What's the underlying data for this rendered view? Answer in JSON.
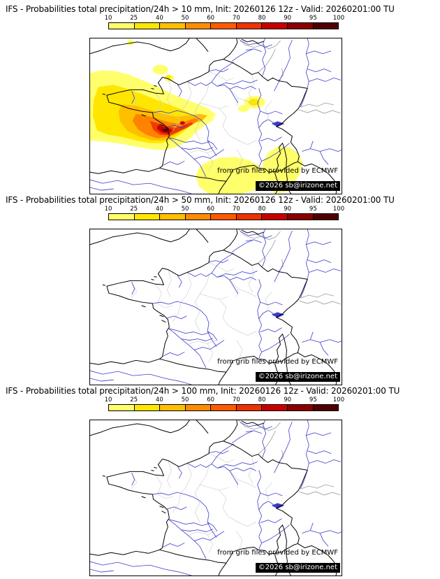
{
  "colorbar": {
    "ticks": [
      "10",
      "25",
      "40",
      "50",
      "60",
      "70",
      "80",
      "90",
      "95",
      "100"
    ],
    "colors": [
      "#ffff6b",
      "#ffe600",
      "#ffbe00",
      "#ff8c00",
      "#ff5a00",
      "#ee3200",
      "#c80000",
      "#8c0000",
      "#500000"
    ],
    "unit": "%"
  },
  "panels": [
    {
      "title": "IFS - Probabilities total precipitation/24h > 10 mm, Init: 20260126 12z - Valid: 20260201:00 TU",
      "threshold_mm": 10,
      "shaded": true
    },
    {
      "title": "IFS - Probabilities total precipitation/24h > 50 mm, Init: 20260126 12z - Valid: 20260201:00 TU",
      "threshold_mm": 50,
      "shaded": false
    },
    {
      "title": "IFS - Probabilities total precipitation/24h > 100 mm, Init: 20260126 12z - Valid: 20260201:00 TU",
      "threshold_mm": 100,
      "shaded": false
    }
  ],
  "credits": {
    "source": "from grib files provided by ECMWF",
    "copyright": "©2026 sb@irizone.net"
  },
  "map_colors": {
    "coastline": "#000000",
    "rivers": "#3c3ccc",
    "country_borders": "#9a9a9a",
    "department_borders": "#c9c9c9"
  },
  "chart_data": {
    "type": "map-series",
    "model": "IFS",
    "variable": "Probability of 24h total precipitation exceeding threshold (%)",
    "init": "20260126 12z",
    "valid": "20260201:00 TU",
    "probability_scale_percent": [
      10,
      25,
      40,
      50,
      60,
      70,
      80,
      90,
      95,
      100
    ],
    "panels": [
      {
        "threshold_mm": 10,
        "shaded": true,
        "summary": "Broad 10-60% probabilities over the Bay of Biscay and southwest France with an 80-95% core near the western Pyrenees; 10-25% patches over central/northern France, the northwest Mediterranean and around Corsica"
      },
      {
        "threshold_mm": 50,
        "shaded": false,
        "summary": "No areas at or above 10%"
      },
      {
        "threshold_mm": 100,
        "shaded": false,
        "summary": "No areas at or above 10%"
      }
    ]
  }
}
